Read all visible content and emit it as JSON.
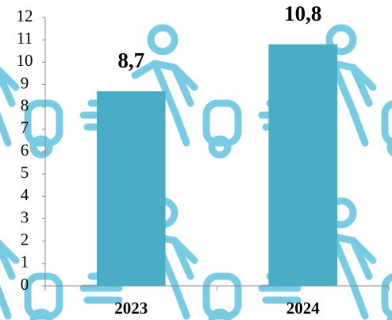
{
  "chart_data": {
    "type": "bar",
    "categories": [
      "2023",
      "2024"
    ],
    "values": [
      8.7,
      10.8
    ],
    "value_labels": [
      "8,7",
      "10,8"
    ],
    "color": "#4bacc6",
    "ylim": [
      0,
      12
    ],
    "yticks": [
      0,
      1,
      2,
      3,
      4,
      5,
      6,
      7,
      8,
      9,
      10,
      11,
      12
    ]
  }
}
